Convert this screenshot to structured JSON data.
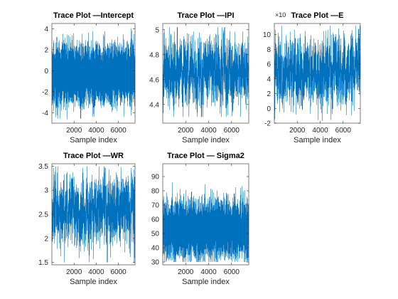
{
  "chart_data": [
    {
      "type": "line",
      "title": "Trace Plot —Intercept",
      "xlabel": "Sample index",
      "ylabel": "",
      "xlim": [
        1,
        7500
      ],
      "ylim": [
        -5,
        4.5
      ],
      "xticks": [
        2000,
        4000,
        6000
      ],
      "yticks": [
        -4,
        -2,
        0,
        2,
        4
      ],
      "ytick_labels": [
        "-4",
        "-2",
        "0",
        "2",
        "4"
      ],
      "exponent_label": "",
      "series_color": "#0072BD",
      "trace": {
        "n": 7500,
        "mean": -0.4,
        "spread": 1.25,
        "min": -4.6,
        "max": 4.2,
        "smoothness": 0.05
      },
      "grid": false
    },
    {
      "type": "line",
      "title": "Trace Plot —IPI",
      "xlabel": "Sample index",
      "ylabel": "",
      "xlim": [
        1,
        7500
      ],
      "ylim": [
        4.25,
        5.05
      ],
      "xticks": [
        2000,
        4000,
        6000
      ],
      "yticks": [
        4.4,
        4.6,
        4.8,
        5.0
      ],
      "ytick_labels": [
        "4.4",
        "4.6",
        "4.8",
        "5"
      ],
      "exponent_label": "",
      "series_color": "#0072BD",
      "trace": {
        "n": 7500,
        "mean": 4.66,
        "spread": 0.13,
        "min": 4.3,
        "max": 5.02,
        "smoothness": 0.9
      },
      "grid": false
    },
    {
      "type": "line",
      "title": "Trace Plot —E",
      "xlabel": "Sample index",
      "ylabel": "",
      "xlim": [
        1,
        7500
      ],
      "ylim": [
        -2,
        11.5
      ],
      "xticks": [
        2000,
        4000,
        6000
      ],
      "yticks": [
        -2,
        0,
        2,
        4,
        6,
        8,
        10
      ],
      "ytick_labels": [
        "-2",
        "0",
        "2",
        "4",
        "6",
        "8",
        "10"
      ],
      "exponent_label": "×10",
      "series_color": "#0072BD",
      "trace": {
        "n": 7500,
        "mean": 4.9,
        "spread": 2.0,
        "min": -1.8,
        "max": 11.2,
        "smoothness": 0.88
      },
      "grid": false
    },
    {
      "type": "line",
      "title": "Trace Plot —WR",
      "xlabel": "Sample index",
      "ylabel": "",
      "xlim": [
        1,
        7500
      ],
      "ylim": [
        1.45,
        3.55
      ],
      "xticks": [
        2000,
        4000,
        6000
      ],
      "yticks": [
        1.5,
        2,
        2.5,
        3,
        3.5
      ],
      "ytick_labels": [
        "1.5",
        "2",
        "2.5",
        "3",
        "3.5"
      ],
      "exponent_label": "",
      "series_color": "#0072BD",
      "trace": {
        "n": 7500,
        "mean": 2.58,
        "spread": 0.33,
        "min": 1.5,
        "max": 3.5,
        "smoothness": 0.9
      },
      "grid": false
    },
    {
      "type": "line",
      "title": "Trace Plot — Sigma2",
      "xlabel": "Sample index",
      "ylabel": "",
      "xlim": [
        1,
        7500
      ],
      "ylim": [
        28,
        99
      ],
      "xticks": [
        2000,
        4000,
        6000
      ],
      "yticks": [
        30,
        40,
        50,
        60,
        70,
        80,
        90
      ],
      "ytick_labels": [
        "30",
        "40",
        "50",
        "60",
        "70",
        "80",
        "90"
      ],
      "exponent_label": "",
      "series_color": "#0072BD",
      "trace": {
        "n": 7500,
        "mean": 53,
        "spread": 9,
        "min": 30,
        "max": 96,
        "smoothness": 0.3
      },
      "grid": false
    }
  ]
}
